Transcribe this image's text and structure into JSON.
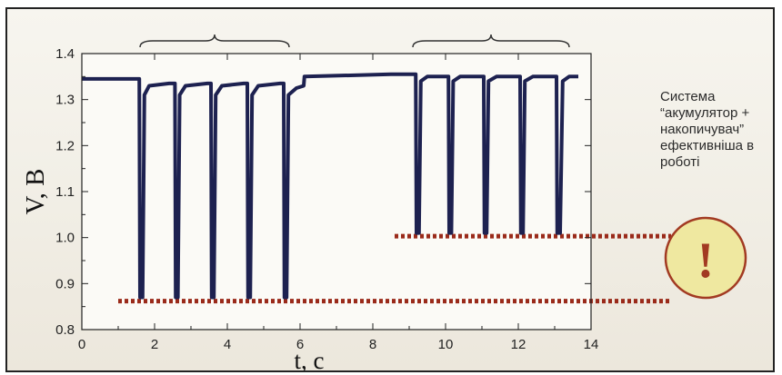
{
  "chart_data": {
    "type": "line",
    "title": "",
    "xlabel": "t, c",
    "ylabel": "V, B",
    "xlim": [
      0,
      14
    ],
    "ylim": [
      0.8,
      1.4
    ],
    "xticks": [
      "0",
      "2",
      "4",
      "6",
      "8",
      "10",
      "12",
      "14"
    ],
    "yticks": [
      "0.8",
      "0.9",
      "1.0",
      "1.1",
      "1.2",
      "1.3",
      "1.4"
    ],
    "series": [
      {
        "color": "#1d2150",
        "points": [
          [
            0.0,
            1.345
          ],
          [
            1.58,
            1.345
          ],
          [
            1.6,
            0.87
          ],
          [
            1.67,
            0.87
          ],
          [
            1.72,
            1.31
          ],
          [
            1.85,
            1.33
          ],
          [
            2.4,
            1.335
          ],
          [
            2.56,
            1.335
          ],
          [
            2.58,
            0.87
          ],
          [
            2.64,
            0.87
          ],
          [
            2.69,
            1.31
          ],
          [
            2.85,
            1.33
          ],
          [
            3.45,
            1.335
          ],
          [
            3.55,
            1.335
          ],
          [
            3.57,
            0.87
          ],
          [
            3.63,
            0.87
          ],
          [
            3.68,
            1.31
          ],
          [
            3.85,
            1.33
          ],
          [
            4.45,
            1.335
          ],
          [
            4.55,
            1.335
          ],
          [
            4.57,
            0.87
          ],
          [
            4.63,
            0.87
          ],
          [
            4.68,
            1.31
          ],
          [
            4.85,
            1.33
          ],
          [
            5.45,
            1.335
          ],
          [
            5.55,
            1.335
          ],
          [
            5.57,
            0.87
          ],
          [
            5.63,
            0.87
          ],
          [
            5.68,
            1.31
          ],
          [
            5.9,
            1.325
          ],
          [
            6.1,
            1.33
          ],
          [
            6.12,
            1.35
          ],
          [
            8.5,
            1.355
          ],
          [
            9.18,
            1.355
          ],
          [
            9.2,
            1.01
          ],
          [
            9.27,
            1.01
          ],
          [
            9.32,
            1.34
          ],
          [
            9.5,
            1.35
          ],
          [
            10.0,
            1.35
          ],
          [
            10.08,
            1.35
          ],
          [
            10.1,
            1.01
          ],
          [
            10.16,
            1.01
          ],
          [
            10.21,
            1.34
          ],
          [
            10.4,
            1.35
          ],
          [
            10.95,
            1.35
          ],
          [
            11.05,
            1.35
          ],
          [
            11.07,
            1.01
          ],
          [
            11.13,
            1.01
          ],
          [
            11.18,
            1.34
          ],
          [
            11.4,
            1.35
          ],
          [
            11.95,
            1.35
          ],
          [
            12.05,
            1.35
          ],
          [
            12.07,
            1.01
          ],
          [
            12.13,
            1.01
          ],
          [
            12.18,
            1.34
          ],
          [
            12.4,
            1.35
          ],
          [
            12.95,
            1.35
          ],
          [
            13.05,
            1.35
          ],
          [
            13.07,
            1.01
          ],
          [
            13.15,
            1.01
          ],
          [
            13.22,
            1.34
          ],
          [
            13.4,
            1.35
          ],
          [
            13.65,
            1.35
          ]
        ]
      }
    ],
    "reference_lines": [
      {
        "y": 0.862,
        "x_from": 1.0,
        "x_to": 13.6,
        "color": "#9a2a1a",
        "style": "dotted",
        "extends_right": true
      },
      {
        "y": 1.003,
        "x_from": 8.6,
        "x_to": 13.6,
        "color": "#9a2a1a",
        "style": "dotted",
        "extends_right": true
      }
    ],
    "braces": [
      {
        "x_from": 1.6,
        "x_to": 5.7
      },
      {
        "x_from": 9.1,
        "x_to": 13.4
      }
    ],
    "grid": false,
    "legend": "none"
  },
  "annotation": {
    "text": "Система\n“акумулятор +\nнакопичувач”\nефективніша в\nроботі"
  },
  "badge": {
    "symbol": "!",
    "fill": "#efe8a0",
    "stroke": "#a23a22",
    "symbol_color": "#a23a22"
  }
}
